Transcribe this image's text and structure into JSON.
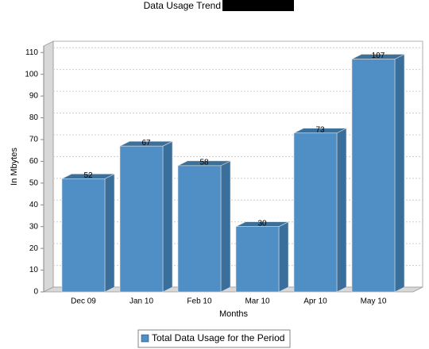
{
  "chart_data": {
    "type": "bar3d",
    "title": "Data Usage Trend",
    "x_label": "Months",
    "y_label": "In Mbytes",
    "categories": [
      "Dec 09",
      "Jan 10",
      "Feb 10",
      "Mar 10",
      "Apr 10",
      "May 10"
    ],
    "series": [
      {
        "name": "Total Data Usage for the Period",
        "color": "#4f8fc6",
        "values": [
          52,
          67,
          58,
          30,
          73,
          107
        ]
      }
    ],
    "ylim": [
      0,
      113
    ],
    "yticks": [
      0,
      10,
      20,
      30,
      40,
      50,
      60,
      70,
      80,
      90,
      100,
      110
    ],
    "grid": true,
    "legend": "bottom"
  }
}
